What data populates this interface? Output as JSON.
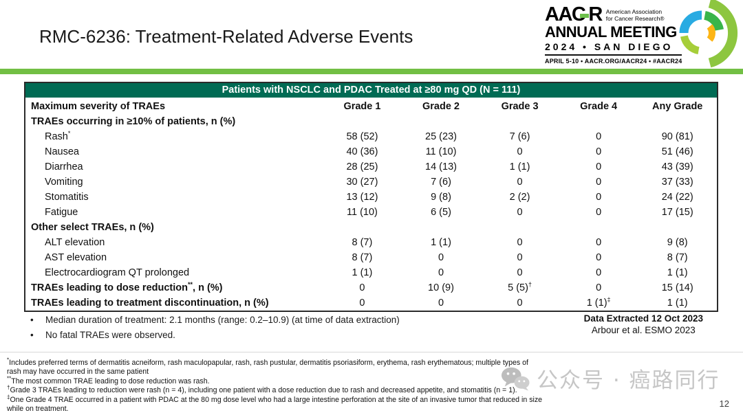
{
  "slide": {
    "title": "RMC-6236: Treatment-Related Adverse Events",
    "page_number": "12"
  },
  "logo": {
    "acronym_left": "AAC",
    "acronym_right": "R",
    "association_line1": "American Association",
    "association_line2": "for Cancer Research®",
    "meeting": "ANNUAL MEETING",
    "year_city": "2024 • SAN DIEGO",
    "details": "APRIL 5-10 • AACR.ORG/AACR24 • #AACR24"
  },
  "table": {
    "banner": "Patients with NSCLC and PDAC Treated at ≥80 mg QD (N = 111)",
    "header": {
      "label": "Maximum severity of TRAEs",
      "columns": [
        "Grade 1",
        "Grade 2",
        "Grade 3",
        "Grade 4",
        "Any Grade"
      ]
    },
    "rows": [
      {
        "type": "section",
        "label": "TRAEs occurring in ≥10% of patients, n (%)",
        "values": []
      },
      {
        "type": "item",
        "label": "Rash*",
        "values": [
          "58 (52)",
          "25 (23)",
          "7 (6)",
          "0",
          "90 (81)"
        ]
      },
      {
        "type": "item",
        "label": "Nausea",
        "values": [
          "40 (36)",
          "11 (10)",
          "0",
          "0",
          "51 (46)"
        ]
      },
      {
        "type": "item",
        "label": "Diarrhea",
        "values": [
          "28 (25)",
          "14 (13)",
          "1 (1)",
          "0",
          "43 (39)"
        ]
      },
      {
        "type": "item",
        "label": "Vomiting",
        "values": [
          "30 (27)",
          "7 (6)",
          "0",
          "0",
          "37 (33)"
        ]
      },
      {
        "type": "item",
        "label": "Stomatitis",
        "values": [
          "13 (12)",
          "9 (8)",
          "2 (2)",
          "0",
          "24 (22)"
        ]
      },
      {
        "type": "item",
        "label": "Fatigue",
        "values": [
          "11 (10)",
          "6 (5)",
          "0",
          "0",
          "17 (15)"
        ]
      },
      {
        "type": "section",
        "label": "Other select TRAEs, n (%)",
        "values": []
      },
      {
        "type": "item",
        "label": "ALT elevation",
        "values": [
          "8 (7)",
          "1 (1)",
          "0",
          "0",
          "9 (8)"
        ]
      },
      {
        "type": "item",
        "label": "AST elevation",
        "values": [
          "8 (7)",
          "0",
          "0",
          "0",
          "8 (7)"
        ]
      },
      {
        "type": "item",
        "label": "Electrocardiogram QT prolonged",
        "values": [
          "1 (1)",
          "0",
          "0",
          "0",
          "1 (1)"
        ]
      },
      {
        "type": "bold",
        "label": "TRAEs leading to dose reduction**, n (%)",
        "values": [
          "0",
          "10 (9)",
          "5 (5)†",
          "0",
          "15 (14)"
        ]
      },
      {
        "type": "bold",
        "label": "TRAEs leading to treatment discontinuation, n (%)",
        "values": [
          "0",
          "0",
          "0",
          "1 (1)‡",
          "1 (1)"
        ]
      }
    ]
  },
  "notes": {
    "bullets": [
      "Median duration of treatment: 2.1 months (range: 0.2–10.9) (at time of data extraction)",
      "No fatal TRAEs were observed."
    ],
    "data_extracted": "Data Extracted 12 Oct 2023",
    "citation": "Arbour et al. ESMO 2023"
  },
  "footnotes": [
    {
      "marker": "*",
      "text": "Includes preferred terms of dermatitis acneiform, rash maculopapular, rash, rash pustular, dermatitis psoriasiform, erythema, rash erythematous; multiple types of rash may have occurred in the same patient"
    },
    {
      "marker": "**",
      "text": "The most common TRAE leading to dose reduction was rash."
    },
    {
      "marker": "†",
      "text": "Grade 3 TRAEs leading to reduction were rash (n = 4), including one patient with a dose reduction due to rash and decreased appetite, and stomatitis (n = 1)."
    },
    {
      "marker": "‡",
      "text": "One Grade 4 TRAE occurred in a patient with PDAC at the 80 mg dose level who had a large intestine perforation at the site of an invasive tumor that reduced in size while on treatment."
    }
  ],
  "watermark": {
    "text": "公众号 · 癌路同行"
  },
  "colors": {
    "band_green": "#006B54",
    "accent_green": "#72BF44",
    "logo_green": "#6CC04A",
    "pinwheel_blue": "#29ABE2",
    "pinwheel_green": "#39B54A",
    "pinwheel_yellow": "#FDB515",
    "pinwheel_light_green": "#8DC63F",
    "pinwheel_olive": "#A6CE39",
    "watermark_gray": "#C6C6C6"
  }
}
